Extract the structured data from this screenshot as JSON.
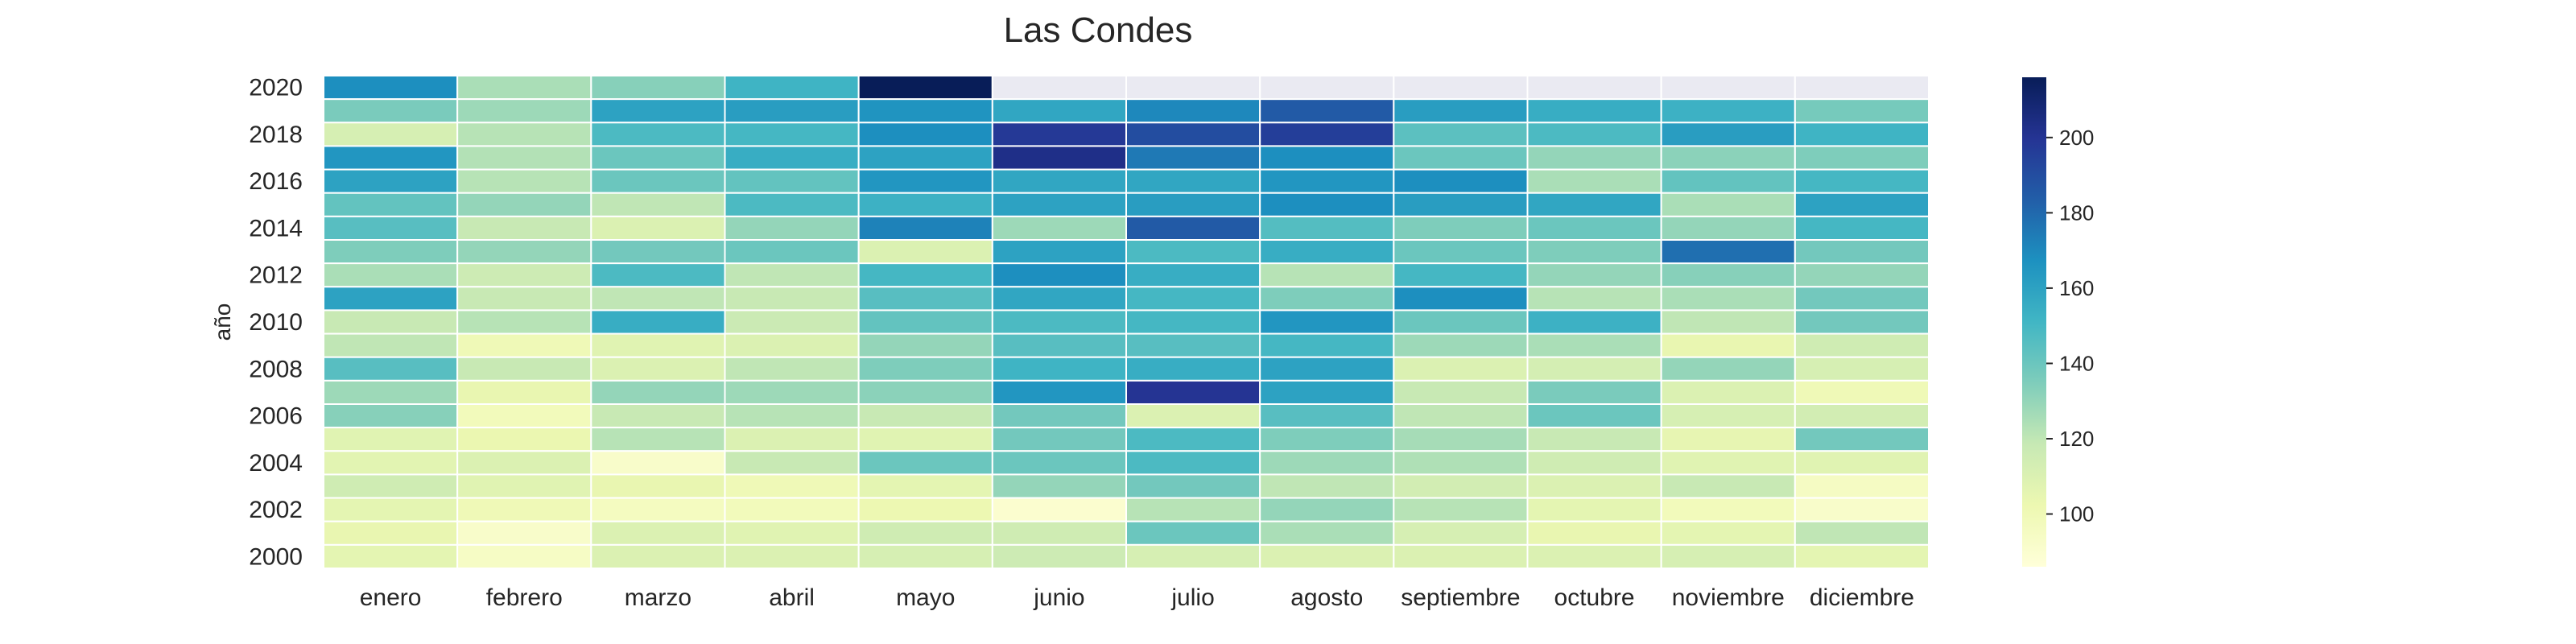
{
  "chart_data": {
    "type": "heatmap",
    "title": "Las Condes",
    "xlabel": "",
    "ylabel": "año",
    "x_categories": [
      "enero",
      "febrero",
      "marzo",
      "abril",
      "mayo",
      "junio",
      "julio",
      "agosto",
      "septiembre",
      "octubre",
      "noviembre",
      "diciembre"
    ],
    "y_categories": [
      "2020",
      "2019",
      "2018",
      "2017",
      "2016",
      "2015",
      "2014",
      "2013",
      "2012",
      "2011",
      "2010",
      "2009",
      "2008",
      "2007",
      "2006",
      "2005",
      "2004",
      "2003",
      "2002",
      "2001",
      "2000"
    ],
    "y_tick_labels": [
      "2020",
      "2018",
      "2016",
      "2014",
      "2012",
      "2010",
      "2008",
      "2006",
      "2004",
      "2002",
      "2000"
    ],
    "colorbar": {
      "min": 86,
      "max": 216,
      "ticks": [
        100,
        120,
        140,
        160,
        180,
        200
      ]
    },
    "colormap": "YlGnBu",
    "missing_color": "#eaeaf2",
    "grid_line_color": "#ffffff",
    "values": [
      [
        168,
        125,
        133,
        152,
        216,
        null,
        null,
        null,
        null,
        null,
        null,
        null
      ],
      [
        136,
        128,
        160,
        162,
        166,
        158,
        170,
        185,
        162,
        155,
        153,
        137
      ],
      [
        112,
        122,
        148,
        150,
        168,
        198,
        190,
        196,
        144,
        148,
        162,
        152
      ],
      [
        165,
        123,
        140,
        155,
        160,
        203,
        175,
        168,
        140,
        130,
        132,
        135
      ],
      [
        160,
        122,
        140,
        142,
        165,
        158,
        158,
        165,
        168,
        125,
        142,
        150
      ],
      [
        142,
        130,
        120,
        148,
        153,
        160,
        162,
        168,
        162,
        158,
        125,
        160
      ],
      [
        145,
        118,
        110,
        130,
        172,
        128,
        185,
        146,
        135,
        140,
        130,
        150
      ],
      [
        135,
        130,
        138,
        140,
        110,
        160,
        148,
        155,
        140,
        135,
        178,
        138
      ],
      [
        125,
        116,
        148,
        120,
        150,
        168,
        155,
        122,
        150,
        130,
        133,
        130
      ],
      [
        160,
        118,
        120,
        118,
        145,
        158,
        150,
        135,
        168,
        122,
        125,
        138
      ],
      [
        118,
        122,
        155,
        117,
        142,
        148,
        150,
        165,
        140,
        153,
        120,
        138
      ],
      [
        120,
        100,
        108,
        110,
        130,
        145,
        145,
        150,
        128,
        125,
        104,
        115
      ],
      [
        145,
        118,
        110,
        120,
        135,
        152,
        155,
        160,
        110,
        113,
        130,
        112
      ],
      [
        128,
        104,
        130,
        128,
        132,
        165,
        200,
        160,
        118,
        136,
        110,
        100
      ],
      [
        133,
        98,
        118,
        122,
        118,
        138,
        110,
        145,
        120,
        140,
        112,
        114
      ],
      [
        108,
        103,
        122,
        110,
        108,
        138,
        148,
        135,
        126,
        118,
        105,
        138
      ],
      [
        107,
        110,
        92,
        118,
        140,
        140,
        148,
        128,
        124,
        115,
        108,
        108
      ],
      [
        115,
        108,
        104,
        100,
        106,
        130,
        138,
        120,
        114,
        110,
        118,
        95
      ],
      [
        106,
        100,
        96,
        98,
        102,
        90,
        122,
        130,
        122,
        106,
        98,
        92
      ],
      [
        104,
        92,
        110,
        108,
        115,
        115,
        140,
        125,
        112,
        104,
        106,
        120
      ],
      [
        106,
        94,
        110,
        110,
        112,
        116,
        112,
        110,
        110,
        110,
        112,
        106
      ]
    ]
  }
}
